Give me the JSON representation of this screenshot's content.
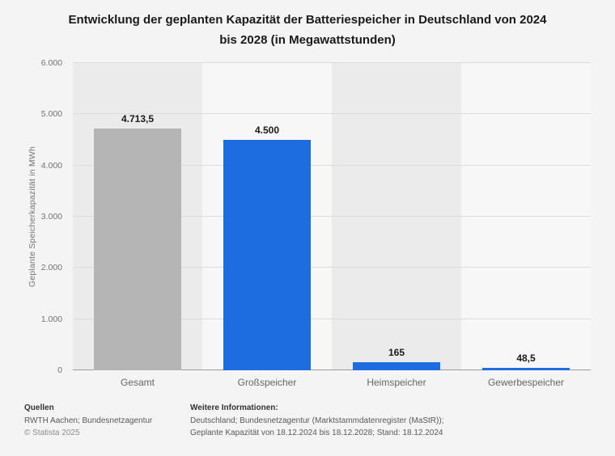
{
  "title": "Entwicklung der geplanten Kapazität der Batteriespeicher in Deutschland von 2024 bis 2028 (in Megawattstunden)",
  "chart_data": {
    "type": "bar",
    "categories": [
      "Gesamt",
      "Großspeicher",
      "Heimspeicher",
      "Gewerbespeicher"
    ],
    "values": [
      4713.5,
      4500,
      165,
      48.5
    ],
    "value_labels": [
      "4.713,5",
      "4.500",
      "165",
      "48,5"
    ],
    "bar_colors": [
      "#b5b5b5",
      "#1d6ce0",
      "#1d6ce0",
      "#1d6ce0"
    ],
    "title": "Entwicklung der geplanten Kapazität der Batteriespeicher in Deutschland von 2024 bis 2028 (in Megawattstunden)",
    "xlabel": "",
    "ylabel": "Geplante Speicherkapazität in MWh",
    "ylim": [
      0,
      6000
    ],
    "yticks": [
      0,
      1000,
      2000,
      3000,
      4000,
      5000,
      6000
    ],
    "ytick_labels": [
      "0",
      "1.000",
      "2.000",
      "3.000",
      "4.000",
      "5.000",
      "6.000"
    ],
    "grid": true,
    "legend": false
  },
  "footer": {
    "sources_heading": "Quellen",
    "sources_line1": "RWTH Aachen; Bundesnetzagentur",
    "copyright": "© Statista 2025",
    "info_heading": "Weitere Informationen:",
    "info_line1": "Deutschland; Bundesnetzagentur (Marktstammdatenregister (MaStR));",
    "info_line2": "Geplante Kapazität von 18.12.2024 bis 18.12.2028; Stand: 18.12.2024"
  }
}
